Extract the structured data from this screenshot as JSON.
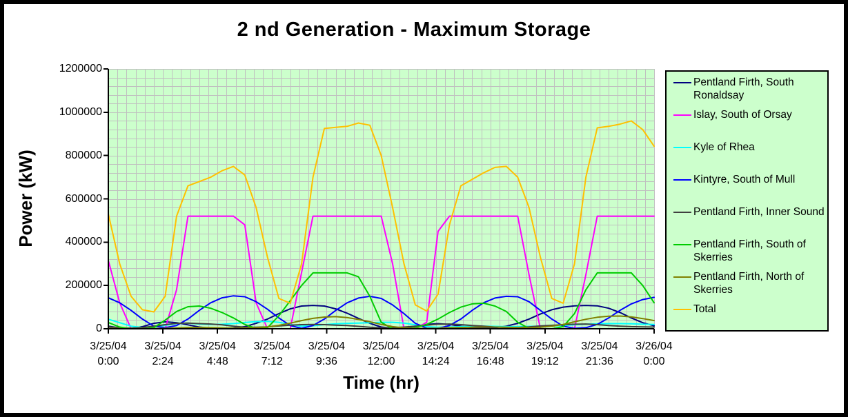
{
  "page": {
    "background": "#ffffff",
    "border_color": "#000000"
  },
  "chart": {
    "title": "2 nd Generation - Maximum Storage",
    "x_axis_title": "Time (hr)",
    "y_axis_title": "Power (kW)",
    "plot_bg": "#ccffcc",
    "legend_bg": "#ccffcc",
    "grid_color": "#c0c0c0",
    "axis_color": "#000000",
    "y_tick_labels": [
      "0",
      "200000",
      "400000",
      "600000",
      "800000",
      "1000000",
      "1200000"
    ],
    "x_tick_labels": [
      [
        "3/25/04",
        "0:00"
      ],
      [
        "3/25/04",
        "2:24"
      ],
      [
        "3/25/04",
        "4:48"
      ],
      [
        "3/25/04",
        "7:12"
      ],
      [
        "3/25/04",
        "9:36"
      ],
      [
        "3/25/04",
        "12:00"
      ],
      [
        "3/25/04",
        "14:24"
      ],
      [
        "3/25/04",
        "16:48"
      ],
      [
        "3/25/04",
        "19:12"
      ],
      [
        "3/25/04",
        "21:36"
      ],
      [
        "3/26/04",
        "0:00"
      ]
    ]
  },
  "chart_data": {
    "type": "line",
    "title": "2 nd Generation - Maximum Storage",
    "xlabel": "Time (hr)",
    "ylabel": "Power (kW)",
    "x_start_label": "3/25/04 0:00",
    "x_end_label": "3/26/04 0:00",
    "x_max": 24,
    "x_step": 0.5,
    "y_max": 1200000,
    "x_minor_step": 0.4,
    "y_minor_step": 40000,
    "x_tick_positions": [
      0,
      2.4,
      4.8,
      7.2,
      9.6,
      12,
      14.4,
      16.8,
      19.2,
      21.6,
      24
    ],
    "grid": true,
    "legend_position": "right",
    "series": [
      {
        "name": "Pentland Firth, South Ronaldsay",
        "color": "#000080",
        "values": [
          12000,
          4000,
          2000,
          10000,
          25000,
          32000,
          28000,
          18000,
          8000,
          3000,
          2000,
          4000,
          10000,
          25000,
          45000,
          70000,
          92000,
          105000,
          108000,
          105000,
          92000,
          72000,
          48000,
          25000,
          8000,
          3000,
          5000,
          12000,
          20000,
          24000,
          20000,
          12000,
          5000,
          3000,
          5000,
          12000,
          25000,
          45000,
          68000,
          88000,
          100000,
          106000,
          108000,
          106000,
          95000,
          75000,
          50000,
          28000,
          14000
        ]
      },
      {
        "name": "Islay, South of Orsay",
        "color": "#ff00ff",
        "values": [
          315000,
          120000,
          0,
          0,
          0,
          0,
          180000,
          520000,
          520000,
          520000,
          520000,
          520000,
          480000,
          120000,
          0,
          0,
          0,
          260000,
          520000,
          520000,
          520000,
          520000,
          520000,
          520000,
          520000,
          300000,
          0,
          0,
          30000,
          450000,
          520000,
          520000,
          520000,
          520000,
          520000,
          520000,
          520000,
          250000,
          0,
          0,
          0,
          0,
          250000,
          520000,
          520000,
          520000,
          520000,
          520000,
          520000
        ]
      },
      {
        "name": "Kyle of Rhea",
        "color": "#00ffff",
        "values": [
          44000,
          28000,
          12000,
          6000,
          8000,
          16000,
          24000,
          26000,
          22000,
          20000,
          21000,
          24000,
          29000,
          33000,
          34000,
          30000,
          20000,
          12000,
          14000,
          19000,
          23000,
          25000,
          26000,
          28000,
          30000,
          30000,
          26000,
          18000,
          10000,
          7000,
          8000,
          10000,
          12000,
          12000,
          11000,
          10000,
          10000,
          11000,
          12000,
          13000,
          15000,
          18000,
          21000,
          23000,
          24000,
          24000,
          23000,
          21000,
          20000
        ]
      },
      {
        "name": "Kintyre, South of Mull",
        "color": "#0000ff",
        "values": [
          143000,
          120000,
          85000,
          45000,
          12000,
          5000,
          15000,
          45000,
          85000,
          120000,
          143000,
          152000,
          148000,
          125000,
          90000,
          50000,
          15000,
          2000,
          15000,
          45000,
          85000,
          120000,
          142000,
          150000,
          140000,
          110000,
          70000,
          25000,
          3000,
          2000,
          15000,
          45000,
          85000,
          120000,
          142000,
          150000,
          148000,
          125000,
          85000,
          45000,
          12000,
          2000,
          5000,
          20000,
          50000,
          85000,
          115000,
          135000,
          145000
        ]
      },
      {
        "name": "Pentland Firth, Inner Sound",
        "color": "#404040",
        "values": [
          9000,
          5000,
          3000,
          6000,
          12000,
          19000,
          25000,
          26000,
          24000,
          22000,
          18000,
          12000,
          7000,
          7000,
          9000,
          13000,
          17000,
          19000,
          20000,
          19000,
          17000,
          15000,
          11000,
          7000,
          4000,
          5000,
          8000,
          12000,
          17000,
          21000,
          22000,
          19000,
          15000,
          12000,
          8000,
          6000,
          6000,
          9000,
          13000,
          16000,
          19000,
          21000,
          22000,
          19000,
          15000,
          12000,
          10000,
          9000,
          8000
        ]
      },
      {
        "name": "Pentland Firth, South of Skerries",
        "color": "#00cc00",
        "values": [
          29000,
          8000,
          0,
          0,
          5000,
          40000,
          80000,
          102000,
          105000,
          95000,
          75000,
          50000,
          20000,
          2000,
          5000,
          60000,
          130000,
          200000,
          258000,
          258000,
          258000,
          258000,
          240000,
          150000,
          30000,
          0,
          0,
          5000,
          20000,
          45000,
          75000,
          100000,
          115000,
          118000,
          105000,
          80000,
          30000,
          2000,
          0,
          0,
          10000,
          70000,
          180000,
          258000,
          258000,
          258000,
          258000,
          200000,
          120000
        ]
      },
      {
        "name": "Pentland Firth, North of Skerries",
        "color": "#808000",
        "values": [
          2000,
          1000,
          1000,
          1000,
          1000,
          2000,
          4000,
          6000,
          6000,
          5000,
          4000,
          3000,
          3000,
          5000,
          9000,
          16000,
          26000,
          38000,
          48000,
          54000,
          56000,
          52000,
          43000,
          32000,
          20000,
          10000,
          4000,
          2000,
          2000,
          3000,
          5000,
          6000,
          7000,
          8000,
          8000,
          7000,
          6000,
          5000,
          7000,
          12000,
          20000,
          32000,
          44000,
          53000,
          58000,
          59000,
          55000,
          47000,
          38000
        ]
      },
      {
        "name": "Total",
        "color": "#ffc000",
        "values": [
          530000,
          300000,
          150000,
          88000,
          78000,
          150000,
          520000,
          660000,
          680000,
          700000,
          730000,
          750000,
          710000,
          560000,
          330000,
          140000,
          118000,
          300000,
          700000,
          925000,
          930000,
          935000,
          950000,
          940000,
          800000,
          560000,
          300000,
          110000,
          82000,
          160000,
          480000,
          660000,
          690000,
          720000,
          745000,
          750000,
          700000,
          560000,
          330000,
          140000,
          118000,
          300000,
          700000,
          928000,
          935000,
          945000,
          960000,
          920000,
          843000
        ]
      }
    ]
  }
}
